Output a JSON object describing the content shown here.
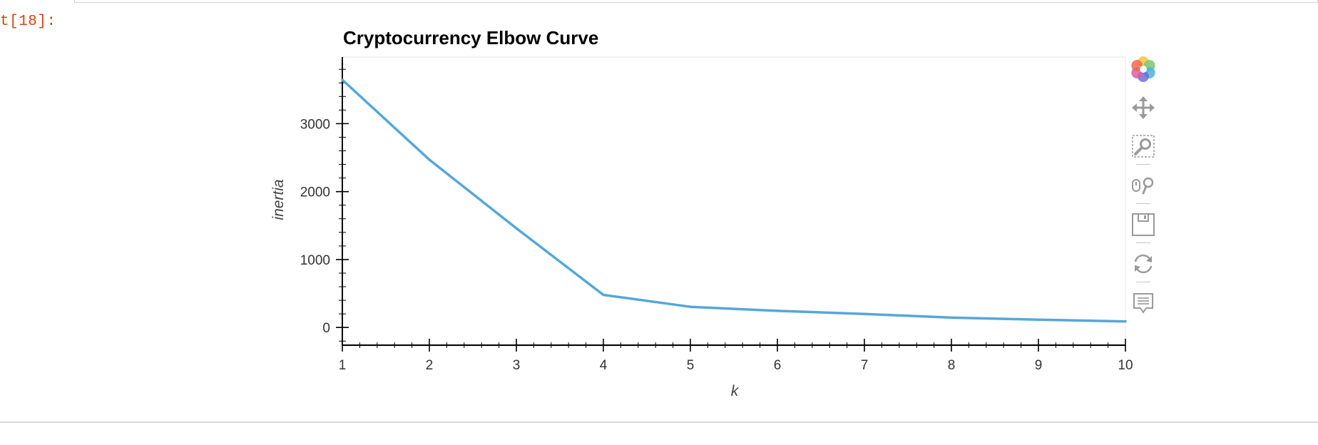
{
  "notebook": {
    "out_prompt": "t[18]:"
  },
  "chart_data": {
    "type": "line",
    "title": "Cryptocurrency Elbow Curve",
    "xlabel": "k",
    "ylabel": "inertia",
    "x": [
      1,
      2,
      3,
      4,
      5,
      6,
      7,
      8,
      9,
      10
    ],
    "series": [
      {
        "values": [
          3645,
          2470,
          1460,
          480,
          305,
          245,
          200,
          145,
          115,
          90
        ],
        "color": "#55a7d9"
      }
    ],
    "xlim": [
      1,
      10
    ],
    "ylim": [
      -260,
      3980
    ],
    "xticks": [
      1,
      2,
      3,
      4,
      5,
      6,
      7,
      8,
      9,
      10
    ],
    "yticks": [
      0,
      1000,
      2000,
      3000
    ],
    "grid": false,
    "legend": "none"
  },
  "toolbar": {
    "tools": [
      {
        "name": "bokeh-logo-icon",
        "interactable": true
      },
      {
        "name": "pan-tool-icon",
        "interactable": true
      },
      {
        "name": "box-zoom-tool-icon",
        "interactable": true
      },
      {
        "name": "wheel-zoom-tool-icon",
        "interactable": true
      },
      {
        "name": "save-tool-icon",
        "interactable": true
      },
      {
        "name": "reset-tool-icon",
        "interactable": true
      },
      {
        "name": "hover-tool-icon",
        "interactable": true
      }
    ]
  }
}
